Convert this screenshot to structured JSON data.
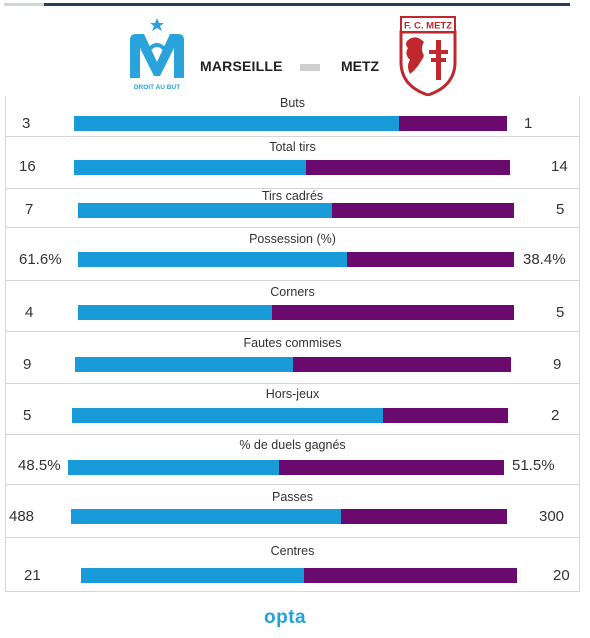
{
  "header": {
    "home_team": "MARSEILLE",
    "away_team": "METZ",
    "home_logo_text": "DROIT AU BUT",
    "away_logo_text": "F. C. METZ"
  },
  "colors": {
    "home": "#199ad9",
    "away": "#6a0a6e"
  },
  "stats": [
    {
      "label": "Buts",
      "home": "3",
      "away": "1",
      "home_share": 0.75
    },
    {
      "label": "Total tirs",
      "home": "16",
      "away": "14",
      "home_share": 0.533
    },
    {
      "label": "Tirs cadrés",
      "home": "7",
      "away": "5",
      "home_share": 0.583
    },
    {
      "label": "Possession (%)",
      "home": "61.6%",
      "away": "38.4%",
      "home_share": 0.616
    },
    {
      "label": "Corners",
      "home": "4",
      "away": "5",
      "home_share": 0.444
    },
    {
      "label": "Fautes commises",
      "home": "9",
      "away": "9",
      "home_share": 0.5
    },
    {
      "label": "Hors-jeux",
      "home": "5",
      "away": "2",
      "home_share": 0.714
    },
    {
      "label": "% de duels gagnés",
      "home": "48.5%",
      "away": "51.5%",
      "home_share": 0.485
    },
    {
      "label": "Passes",
      "home": "488",
      "away": "300",
      "home_share": 0.619
    },
    {
      "label": "Centres",
      "home": "21",
      "away": "20",
      "home_share": 0.512
    }
  ],
  "footer": {
    "brand": "opta"
  }
}
